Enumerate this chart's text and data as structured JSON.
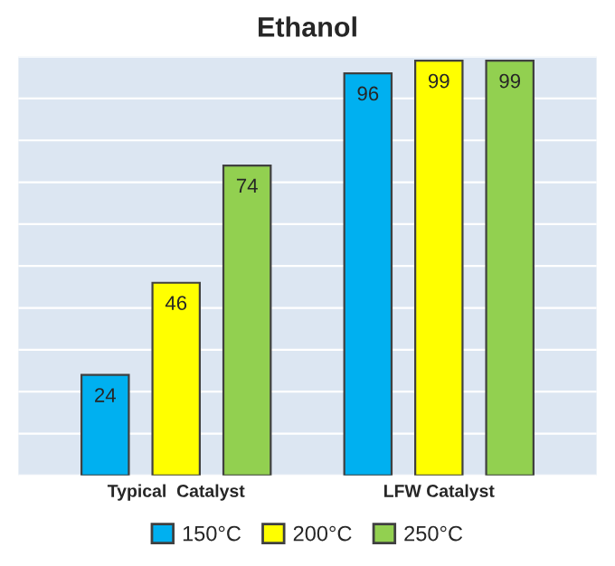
{
  "chart_data": {
    "type": "bar",
    "title": "Ethanol",
    "categories": [
      "Typical  Catalyst",
      "LFW Catalyst"
    ],
    "series": [
      {
        "name": "150°C",
        "color": "#00b0f0",
        "values": [
          24,
          96
        ]
      },
      {
        "name": "200°C",
        "color": "#ffff00",
        "values": [
          46,
          99
        ]
      },
      {
        "name": "250°C",
        "color": "#92d050",
        "values": [
          74,
          99
        ]
      }
    ],
    "ylim": [
      0,
      100
    ],
    "yticks": [
      {
        "value": 0,
        "label": null
      },
      {
        "value": 10,
        "label": null
      },
      {
        "value": 20,
        "label": null
      },
      {
        "value": 30,
        "label": null
      },
      {
        "value": 40,
        "label": null
      },
      {
        "value": 50,
        "label": null
      },
      {
        "value": 60,
        "label": null
      },
      {
        "value": 70,
        "label": null
      },
      {
        "value": 80,
        "label": null
      },
      {
        "value": 90,
        "label": null
      },
      {
        "value": 100,
        "label": null
      }
    ],
    "tick_labels": "x",
    "grid": "y",
    "data_labels": true,
    "legend": "bottom"
  }
}
